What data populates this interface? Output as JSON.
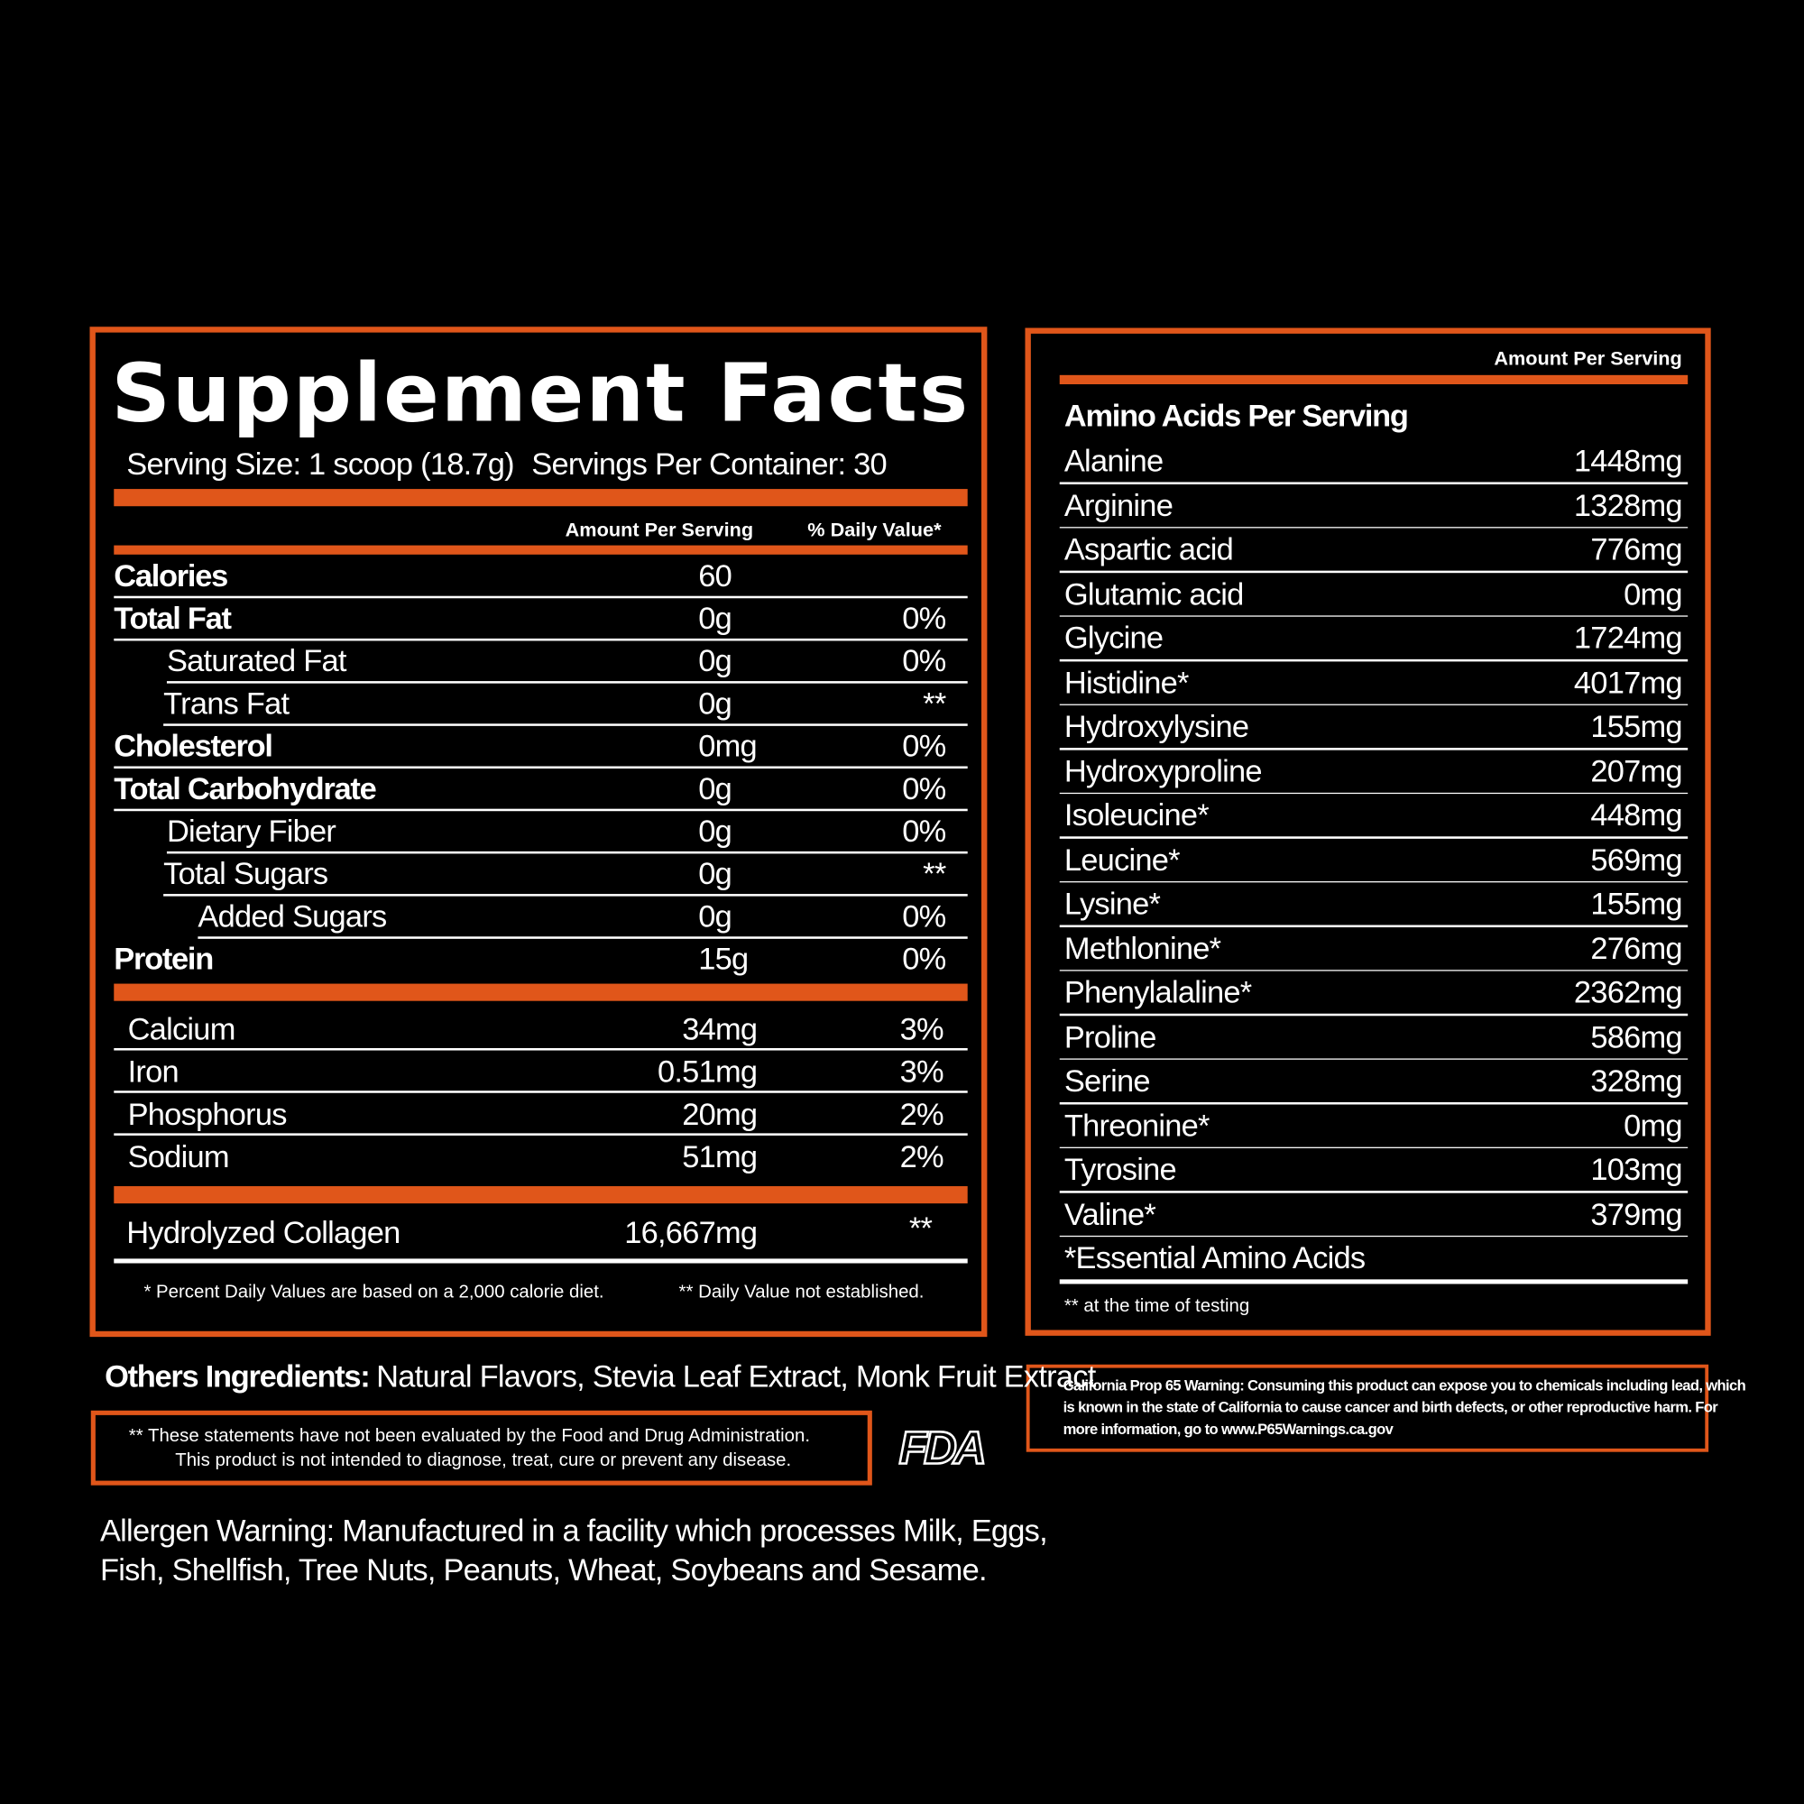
{
  "title": "Supplement Facts",
  "serving_size": "Serving Size: 1 scoop (18.7g)",
  "servings_per_container": "Servings Per Container: 30",
  "facts_table": {
    "headers": [
      "Amount Per Serving",
      "% Daily Value*"
    ],
    "rows": [
      [
        "Calories",
        "60"
      ],
      [
        "Total Fat",
        "0g",
        "0%"
      ],
      [
        "Saturated Fat",
        "0g",
        "0%"
      ],
      [
        "Trans Fat",
        "0g",
        "**"
      ],
      [
        "Cholesterol",
        "0mg",
        "0%"
      ],
      [
        "Total Carbohydrate",
        "0g",
        "0%"
      ],
      [
        "Dietary Fiber",
        "0g",
        "0%"
      ],
      [
        "Total Sugars",
        "0g",
        "**"
      ],
      [
        "Added Sugars",
        "0g",
        "0%"
      ],
      [
        "Protein",
        "15g",
        "0%"
      ]
    ]
  },
  "minerals": [
    [
      "Calcium",
      "34mg",
      "3%"
    ],
    [
      "Iron",
      "0.51mg",
      "3%"
    ],
    [
      "Phosphorus",
      "20mg",
      "2%"
    ],
    [
      "Sodium",
      "51mg",
      "2%"
    ]
  ],
  "collagen": [
    "Hydrolyzed Collagen",
    "16,667mg",
    "**"
  ],
  "footnotes": [
    "* Percent Daily Values are based on a 2,000 calorie diet.",
    "** Daily Value not established."
  ],
  "amino_table": {
    "header": "Amount Per Serving",
    "title": "Amino Acids Per Serving",
    "rows": [
      [
        "Alanine",
        "1448mg"
      ],
      [
        "Arginine",
        "1328mg"
      ],
      [
        "Aspartic acid",
        "776mg"
      ],
      [
        "Glutamic acid",
        "0mg"
      ],
      [
        "Glycine",
        "1724mg"
      ],
      [
        "Histidine*",
        "4017mg"
      ],
      [
        "Hydroxylysine",
        "155mg"
      ],
      [
        "Hydroxyproline",
        "207mg"
      ],
      [
        "Isoleucine*",
        "448mg"
      ],
      [
        "Leucine*",
        "569mg"
      ],
      [
        "Lysine*",
        "155mg"
      ],
      [
        "Methlonine*",
        "276mg"
      ],
      [
        "Phenylalaline*",
        "2362mg"
      ],
      [
        "Proline",
        "586mg"
      ],
      [
        "Serine",
        "328mg"
      ],
      [
        "Threonine*",
        "0mg"
      ],
      [
        "Tyrosine",
        "103mg"
      ],
      [
        "Valine*",
        "379mg"
      ]
    ],
    "note": "*Essential Amino Acids",
    "footnote": "** at the time of testing"
  },
  "other_ingredients": {
    "label": "Others Ingredients:",
    "text": "Natural Flavors, Stevia Leaf Extract, Monk Fruit Extract"
  },
  "fda_statement": [
    "** These statements have not been evaluated by the Food and Drug Administration.",
    "This product is not intended to diagnose, treat, cure or prevent any disease."
  ],
  "fda_logo": "FDA",
  "allergen_warning": [
    "Allergen Warning: Manufactured in a facility which processes Milk, Eggs,",
    "Fish, Shellfish, Tree Nuts, Peanuts, Wheat, Soybeans and Sesame."
  ],
  "prop65_warning": [
    "California Prop 65 Warning: Consuming this product can expose you to chemicals including lead, which",
    "is known in the state of California to cause cancer and birth defects, or other reproductive harm. For",
    "more information, go to www.P65Warnings.ca.gov"
  ]
}
